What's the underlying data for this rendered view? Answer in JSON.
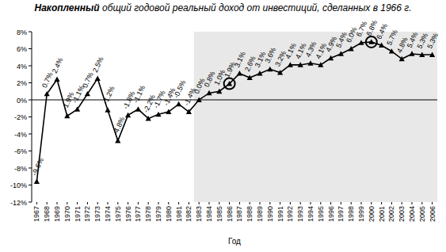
{
  "chart_data": {
    "type": "line",
    "title": "Накопленный общий годовой реальный доход от инвестиций, сделанных в 1966 г.",
    "x_label": "Год",
    "categories": [
      "1967",
      "1968",
      "1969",
      "1970",
      "1971",
      "1972",
      "1973",
      "1974",
      "1975",
      "1976",
      "1977",
      "1978",
      "1979",
      "1980",
      "1981",
      "1982",
      "1983",
      "1984",
      "1985",
      "1986",
      "1987",
      "1988",
      "1989",
      "1990",
      "1991",
      "1992",
      "1993",
      "1994",
      "1995",
      "1996",
      "1997",
      "1998",
      "1999",
      "2000",
      "2001",
      "2002",
      "2003",
      "2004",
      "2005",
      "2006"
    ],
    "values": [
      -9.6,
      0.7,
      2.4,
      -1.9,
      -1.1,
      0.7,
      2.5,
      -1.2,
      -4.8,
      -1.8,
      -1.1,
      -2.2,
      -1.7,
      -1.4,
      -0.5,
      -1.4,
      0.0,
      0.8,
      1.0,
      1.9,
      3.1,
      2.6,
      3.1,
      3.6,
      3.2,
      4.1,
      4.1,
      4.3,
      4.1,
      4.9,
      5.4,
      6.0,
      6.7,
      6.8,
      6.4,
      5.7,
      4.8,
      5.4,
      5.3,
      5.3
    ],
    "value_labels": [
      "-9.6%",
      "0.7%",
      "2.4%",
      "-1.9%",
      "-1.1%",
      "0.7%",
      "2.5%",
      "-1.2%",
      "-4.8%",
      "-1.8%",
      "-1.1%",
      "-2.2%",
      "-1.7%",
      "-1.4%",
      "-0.5%",
      "-1.4%",
      "0.0%",
      "0.8%",
      "1.0%",
      "1.9%",
      "3.1%",
      "2.6%",
      "3.1%",
      "3.6%",
      "3.2%",
      "4.1%",
      "4.1%",
      "4.3%",
      "4.1%",
      "4.9%",
      "5.4%",
      "6.0%",
      "6.7%",
      "6.8%",
      "6.4%",
      "5.7%",
      "4.8%",
      "5.4%",
      "5.3%",
      "5.3%"
    ],
    "color": "#000000",
    "marker": "triangle",
    "line_style": "solid",
    "data_labels": true,
    "grid": false,
    "ylim": [
      -12,
      8
    ],
    "yticks": [
      {
        "value": -12,
        "label": "-12%"
      },
      {
        "value": -10,
        "label": "-10%"
      },
      {
        "value": -8,
        "label": "-8%"
      },
      {
        "value": -6,
        "label": "-6%"
      },
      {
        "value": -4,
        "label": "-4%"
      },
      {
        "value": -2,
        "label": "-2%"
      },
      {
        "value": 0,
        "label": "0%"
      },
      {
        "value": 2,
        "label": "2%"
      },
      {
        "value": 4,
        "label": "4%"
      },
      {
        "value": 6,
        "label": "6%"
      },
      {
        "value": 8,
        "label": "8%"
      }
    ],
    "shaded_region": [
      "1983",
      "2006"
    ],
    "circled": [
      "1986",
      "2000"
    ]
  }
}
